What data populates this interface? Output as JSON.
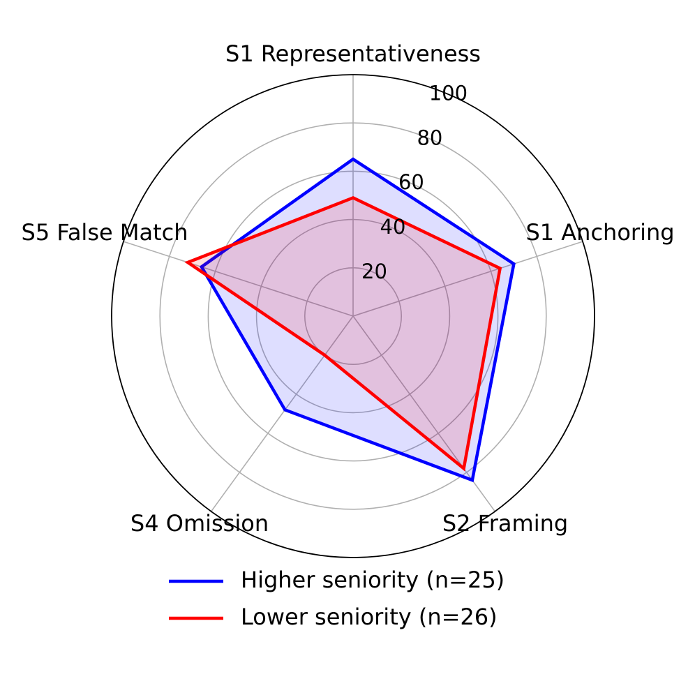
{
  "chart_data": {
    "type": "radar",
    "title": "",
    "categories": [
      "S1 Representativeness",
      "S1 Anchoring",
      "S2 Framing",
      "S4 Omission",
      "S5 False Match"
    ],
    "rlim": [
      0,
      100
    ],
    "rticks": [
      20,
      40,
      60,
      80,
      100
    ],
    "grid": true,
    "legend_position": "bottom",
    "series": [
      {
        "name": "Higher seniority (n=25)",
        "values": [
          65,
          70,
          84,
          48,
          66
        ],
        "color": "#0000ff",
        "fill": "#0000ff"
      },
      {
        "name": "Lower seniority (n=26)",
        "values": [
          49,
          64,
          78,
          20,
          72
        ],
        "color": "#ff0000",
        "fill": "#ff0000"
      }
    ]
  }
}
